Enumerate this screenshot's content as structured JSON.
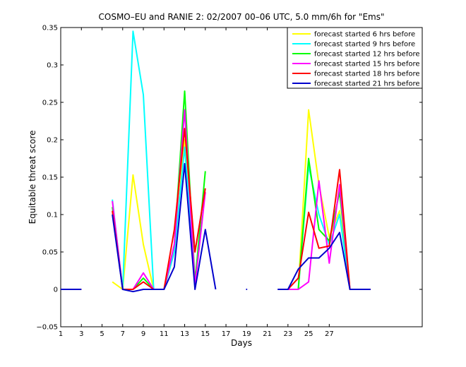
{
  "chart_data": {
    "type": "line",
    "title": "COSMO–EU and RANIE 2: 02/2007 00–06 UTC, 5.0 mm/6h for \"Ems\"",
    "xlabel": "Days",
    "ylabel": "Equitable threat score",
    "xlim": [
      1,
      36
    ],
    "ylim": [
      -0.05,
      0.35
    ],
    "xticks": [
      1,
      3,
      5,
      7,
      9,
      11,
      13,
      15,
      17,
      19,
      21,
      23,
      25,
      27
    ],
    "xtick_labels": [
      "1",
      "3",
      "5",
      "7",
      "9",
      "11",
      "13",
      "15",
      "17",
      "19",
      "21",
      "23",
      "25",
      "27"
    ],
    "yticks": [
      -0.05,
      0,
      0.05,
      0.1,
      0.15,
      0.2,
      0.25,
      0.3,
      0.35
    ],
    "ytick_labels": [
      "−0.05",
      "0",
      "0.05",
      "0.1",
      "0.15",
      "0.2",
      "0.25",
      "0.3",
      "0.35"
    ],
    "grid": false,
    "legend_position": "top-right",
    "series": [
      {
        "name": "forecast started  6 hrs before",
        "color": "#ffff00",
        "points": [
          [
            1,
            0
          ],
          [
            2,
            0
          ],
          [
            3,
            0
          ],
          [
            6,
            0.01
          ],
          [
            7,
            0
          ],
          [
            8,
            0.153
          ],
          [
            9,
            0.06
          ],
          [
            10,
            0
          ],
          [
            11,
            0
          ],
          [
            12,
            0.05
          ],
          [
            13,
            0.2
          ],
          [
            14,
            0.01
          ],
          [
            24,
            0
          ],
          [
            25,
            0.24
          ],
          [
            26,
            0.14
          ],
          [
            27,
            0.07
          ],
          [
            28,
            0.105
          ],
          [
            29,
            0
          ],
          [
            30,
            0
          ],
          [
            31,
            0
          ]
        ]
      },
      {
        "name": "forecast started  9 hrs before",
        "color": "#00ffff",
        "points": [
          [
            1,
            0
          ],
          [
            2,
            0
          ],
          [
            3,
            0
          ],
          [
            6,
            0.12
          ],
          [
            7,
            0
          ],
          [
            8,
            0.345
          ],
          [
            9,
            0.26
          ],
          [
            10,
            0
          ],
          [
            11,
            0
          ],
          [
            12,
            0.05
          ],
          [
            13,
            0.19
          ],
          [
            14,
            0.01
          ],
          [
            24,
            0
          ],
          [
            25,
            0.165
          ],
          [
            26,
            0.1
          ],
          [
            27,
            0.06
          ],
          [
            28,
            0.1
          ],
          [
            29,
            0
          ],
          [
            30,
            0
          ],
          [
            31,
            0
          ]
        ]
      },
      {
        "name": "forecast started 12 hrs before",
        "color": "#00ff00",
        "points": [
          [
            1,
            0
          ],
          [
            2,
            0
          ],
          [
            3,
            0
          ],
          [
            6,
            0.11
          ],
          [
            7,
            0
          ],
          [
            8,
            0
          ],
          [
            9,
            0.015
          ],
          [
            10,
            0
          ],
          [
            11,
            0
          ],
          [
            12,
            0.06
          ],
          [
            13,
            0.265
          ],
          [
            14,
            0.01
          ],
          [
            15,
            0.158
          ],
          [
            24,
            0
          ],
          [
            25,
            0.175
          ],
          [
            26,
            0.08
          ],
          [
            27,
            0.065
          ],
          [
            28,
            0.13
          ],
          [
            29,
            0
          ],
          [
            30,
            0
          ],
          [
            31,
            0
          ]
        ]
      },
      {
        "name": "forecast started 15 hrs before",
        "color": "#ff00ff",
        "points": [
          [
            1,
            0
          ],
          [
            2,
            0
          ],
          [
            3,
            0
          ],
          [
            6,
            0.118
          ],
          [
            7,
            0
          ],
          [
            8,
            0
          ],
          [
            9,
            0.022
          ],
          [
            10,
            0
          ],
          [
            11,
            0
          ],
          [
            12,
            0.06
          ],
          [
            13,
            0.24
          ],
          [
            14,
            0.005
          ],
          [
            15,
            0.13
          ],
          [
            23,
            0
          ],
          [
            24,
            0
          ],
          [
            25,
            0.01
          ],
          [
            26,
            0.145
          ],
          [
            27,
            0.035
          ],
          [
            28,
            0.14
          ],
          [
            29,
            0
          ],
          [
            30,
            0
          ],
          [
            31,
            0
          ]
        ]
      },
      {
        "name": "forecast started 18 hrs before",
        "color": "#ff0000",
        "points": [
          [
            1,
            0
          ],
          [
            2,
            0
          ],
          [
            3,
            0
          ],
          [
            6,
            0.105
          ],
          [
            7,
            0
          ],
          [
            8,
            0
          ],
          [
            9,
            0.01
          ],
          [
            10,
            0
          ],
          [
            11,
            0
          ],
          [
            12,
            0.08
          ],
          [
            13,
            0.215
          ],
          [
            14,
            0.05
          ],
          [
            15,
            0.135
          ],
          [
            23,
            0
          ],
          [
            24,
            0.015
          ],
          [
            25,
            0.103
          ],
          [
            26,
            0.055
          ],
          [
            27,
            0.058
          ],
          [
            28,
            0.16
          ],
          [
            29,
            0
          ],
          [
            30,
            0
          ],
          [
            31,
            0
          ]
        ]
      },
      {
        "name": "forecast started 21 hrs before",
        "color": "#0000cc",
        "points": [
          [
            1,
            0
          ],
          [
            2,
            0
          ],
          [
            3,
            0
          ],
          [
            6,
            0.1
          ],
          [
            7,
            0
          ],
          [
            8,
            -0.003
          ],
          [
            9,
            0
          ],
          [
            10,
            0
          ],
          [
            11,
            0
          ],
          [
            12,
            0.03
          ],
          [
            13,
            0.168
          ],
          [
            14,
            0
          ],
          [
            15,
            0.08
          ],
          [
            16,
            0
          ],
          [
            19,
            0
          ],
          [
            22,
            0
          ],
          [
            23,
            0
          ],
          [
            24,
            0.027
          ],
          [
            25,
            0.042
          ],
          [
            26,
            0.042
          ],
          [
            27,
            0.055
          ],
          [
            28,
            0.076
          ],
          [
            29,
            0
          ],
          [
            30,
            0
          ],
          [
            31,
            0
          ]
        ]
      }
    ]
  }
}
